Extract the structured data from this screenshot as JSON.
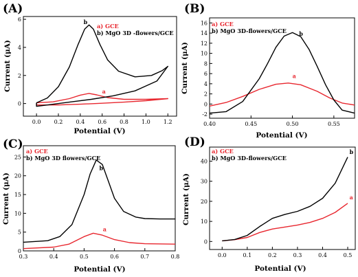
{
  "colors": {
    "series_a": "#e8262e",
    "series_b": "#000000"
  },
  "chart_data": [
    {
      "type": "line",
      "panel": "(A)",
      "xlabel": "Potential (V)",
      "ylabel": "Current (μA)",
      "xlim": [
        -0.12,
        1.28
      ],
      "ylim": [
        -0.9,
        6.2
      ],
      "xticks": [
        0.0,
        0.2,
        0.4,
        0.6,
        0.8,
        1.0,
        1.2
      ],
      "xtick_labels": [
        "0.0",
        "0.2",
        "0.4",
        "0.6",
        "0.8",
        "1.0",
        "1.2"
      ],
      "yticks": [
        0,
        2,
        4,
        6
      ],
      "ytick_labels": [
        "0",
        "2",
        "4",
        "6"
      ],
      "grid": false,
      "legend": "top-left",
      "legend_entries": [
        "a) GCE",
        "b) MgO 3D -flowers/GCE"
      ],
      "series": [
        {
          "name": "a",
          "color": "#e8262e",
          "label_at": [
            0.6,
            0.72
          ],
          "x": [
            0.0,
            0.15,
            0.3,
            0.4,
            0.48,
            0.55,
            0.65,
            0.8,
            1.0,
            1.2,
            1.2,
            1.0,
            0.8,
            0.6,
            0.4,
            0.2,
            0.0,
            0.0
          ],
          "y": [
            0.05,
            0.12,
            0.35,
            0.6,
            0.72,
            0.62,
            0.42,
            0.3,
            0.3,
            0.35,
            0.35,
            0.2,
            0.1,
            0.02,
            -0.05,
            -0.1,
            -0.1,
            0.05
          ]
        },
        {
          "name": "b",
          "color": "#000000",
          "label_at": [
            0.43,
            5.65
          ],
          "x": [
            0.0,
            0.1,
            0.2,
            0.3,
            0.38,
            0.44,
            0.48,
            0.52,
            0.58,
            0.65,
            0.75,
            0.9,
            1.05,
            1.15,
            1.2,
            1.2,
            1.1,
            0.9,
            0.7,
            0.5,
            0.3,
            0.1,
            0.0,
            0.0
          ],
          "y": [
            0.05,
            0.4,
            1.2,
            2.6,
            4.2,
            5.3,
            5.6,
            5.3,
            4.2,
            3.1,
            2.3,
            1.9,
            2.0,
            2.35,
            2.65,
            2.65,
            1.6,
            0.9,
            0.55,
            0.3,
            0.1,
            -0.1,
            -0.2,
            0.05
          ]
        }
      ]
    },
    {
      "type": "line",
      "panel": "(B)",
      "xlabel": "Potential (V)",
      "ylabel": "Current (μA)",
      "xlim": [
        0.4,
        0.575
      ],
      "ylim": [
        -2.8,
        17
      ],
      "xticks": [
        0.4,
        0.45,
        0.5,
        0.55
      ],
      "xtick_labels": [
        "0.40",
        "0.45",
        "0.50",
        "0.55"
      ],
      "yticks": [
        -2,
        0,
        2,
        4,
        6,
        8,
        10,
        12,
        14,
        16
      ],
      "ytick_labels": [
        "-2",
        "0",
        "2",
        "4",
        "6",
        "8",
        "10",
        "12",
        "14",
        "16"
      ],
      "grid": false,
      "legend": "top-left",
      "legend_entries": [
        "a) GCE",
        "b) MgO 3D-flowers/GCE"
      ],
      "series": [
        {
          "name": "a",
          "color": "#e8262e",
          "label_at": [
            0.5,
            5.1
          ],
          "x": [
            0.4,
            0.42,
            0.44,
            0.46,
            0.48,
            0.495,
            0.51,
            0.53,
            0.545,
            0.56,
            0.575
          ],
          "y": [
            -0.4,
            0.3,
            1.5,
            2.9,
            3.9,
            4.15,
            3.8,
            2.5,
            1.2,
            0.2,
            -0.2
          ]
        },
        {
          "name": "b",
          "color": "#000000",
          "label_at": [
            0.508,
            13.5
          ],
          "x": [
            0.4,
            0.42,
            0.44,
            0.46,
            0.47,
            0.48,
            0.49,
            0.5,
            0.51,
            0.52,
            0.53,
            0.54,
            0.55,
            0.56,
            0.575
          ],
          "y": [
            -1.8,
            -1.5,
            0.5,
            5.0,
            8.0,
            11.2,
            13.4,
            14.1,
            13.3,
            10.8,
            7.4,
            3.8,
            0.8,
            -1.2,
            -1.8
          ]
        }
      ]
    },
    {
      "type": "line",
      "panel": "(C)",
      "xlabel": "Potential (V)",
      "ylabel": "Current (μA)",
      "xlim": [
        0.3,
        0.8
      ],
      "ylim": [
        0,
        28
      ],
      "xticks": [
        0.3,
        0.4,
        0.5,
        0.6,
        0.7,
        0.8
      ],
      "xtick_labels": [
        "0.3",
        "0.4",
        "0.5",
        "0.6",
        "0.7",
        "0.8"
      ],
      "yticks": [
        0,
        5,
        10,
        15,
        20,
        25
      ],
      "ytick_labels": [
        "0",
        "5",
        "10",
        "15",
        "20",
        "25"
      ],
      "grid": false,
      "legend": "top-left",
      "legend_entries": [
        "a) GCE",
        "b) MgO 3D flowers/GCE"
      ],
      "series": [
        {
          "name": "a",
          "color": "#e8262e",
          "label_at": [
            0.562,
            5.2
          ],
          "x": [
            0.3,
            0.4,
            0.45,
            0.5,
            0.53,
            0.56,
            0.6,
            0.65,
            0.7,
            0.8
          ],
          "y": [
            0.6,
            1.0,
            1.8,
            3.8,
            4.7,
            4.2,
            3.0,
            2.2,
            1.9,
            1.8
          ]
        },
        {
          "name": "b",
          "color": "#000000",
          "label_at": [
            0.55,
            21.5
          ],
          "x": [
            0.3,
            0.38,
            0.42,
            0.46,
            0.5,
            0.52,
            0.54,
            0.56,
            0.58,
            0.6,
            0.63,
            0.67,
            0.7,
            0.75,
            0.8
          ],
          "y": [
            2.3,
            2.7,
            3.8,
            7.0,
            15.0,
            20.5,
            24.2,
            23.0,
            18.5,
            14.0,
            10.5,
            9.0,
            8.6,
            8.5,
            8.5
          ]
        }
      ]
    },
    {
      "type": "line",
      "panel": "(D)",
      "xlabel": "Potential (V)",
      "ylabel": "Current (μA)",
      "xlim": [
        -0.05,
        0.53
      ],
      "ylim": [
        -4,
        47
      ],
      "xticks": [
        0.0,
        0.1,
        0.2,
        0.3,
        0.4,
        0.5
      ],
      "xtick_labels": [
        "0.0",
        "0.1",
        "0.2",
        "0.3",
        "0.4",
        "0.5"
      ],
      "yticks": [
        0,
        10,
        20,
        30,
        40
      ],
      "ytick_labels": [
        "0",
        "10",
        "20",
        "30",
        "40"
      ],
      "grid": false,
      "legend": "top-left",
      "legend_entries": [
        "a) GCE",
        "b) MgO 3D-flowers/GCE"
      ],
      "series": [
        {
          "name": "a",
          "color": "#e8262e",
          "label_at": [
            0.507,
            21.0
          ],
          "x": [
            0.0,
            0.05,
            0.1,
            0.15,
            0.2,
            0.25,
            0.3,
            0.35,
            0.4,
            0.45,
            0.5
          ],
          "y": [
            0.3,
            0.9,
            2.0,
            4.5,
            6.2,
            7.2,
            8.2,
            9.5,
            11.5,
            14.5,
            19.0
          ]
        },
        {
          "name": "b",
          "color": "#000000",
          "label_at": [
            0.507,
            43.5
          ],
          "x": [
            0.0,
            0.05,
            0.1,
            0.15,
            0.2,
            0.25,
            0.3,
            0.35,
            0.4,
            0.45,
            0.5
          ],
          "y": [
            0.3,
            1.0,
            3.0,
            7.5,
            11.5,
            13.5,
            15.0,
            17.5,
            21.5,
            29.0,
            42.0
          ]
        }
      ]
    }
  ]
}
